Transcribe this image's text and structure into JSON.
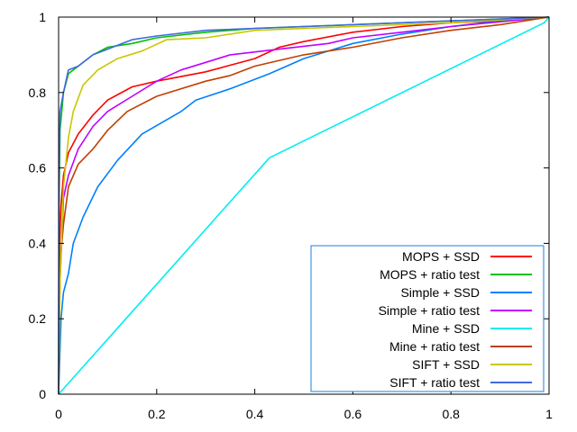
{
  "chart_data": {
    "type": "line",
    "title": "",
    "xlabel": "",
    "ylabel": "",
    "xlim": [
      0,
      1
    ],
    "ylim": [
      0,
      1
    ],
    "grid": false,
    "legend_position": "bottom-right",
    "x_ticks": [
      "0",
      "0.2",
      "0.4",
      "0.6",
      "0.8",
      "1"
    ],
    "y_ticks": [
      "0",
      "0.2",
      "0.4",
      "0.6",
      "0.8",
      "1"
    ],
    "series": [
      {
        "name": "MOPS + SSD",
        "color": "#ff0000",
        "points": [
          [
            0,
            0
          ],
          [
            0.002,
            0.4
          ],
          [
            0.005,
            0.5
          ],
          [
            0.01,
            0.58
          ],
          [
            0.02,
            0.64
          ],
          [
            0.04,
            0.69
          ],
          [
            0.07,
            0.74
          ],
          [
            0.1,
            0.78
          ],
          [
            0.15,
            0.815
          ],
          [
            0.2,
            0.83
          ],
          [
            0.3,
            0.855
          ],
          [
            0.4,
            0.89
          ],
          [
            0.45,
            0.92
          ],
          [
            0.5,
            0.935
          ],
          [
            0.6,
            0.96
          ],
          [
            0.7,
            0.975
          ],
          [
            0.8,
            0.985
          ],
          [
            0.9,
            0.99
          ],
          [
            1,
            1
          ]
        ]
      },
      {
        "name": "MOPS + ratio test",
        "color": "#00c000",
        "points": [
          [
            0,
            0
          ],
          [
            0.001,
            0.5
          ],
          [
            0.003,
            0.7
          ],
          [
            0.01,
            0.8
          ],
          [
            0.02,
            0.85
          ],
          [
            0.04,
            0.87
          ],
          [
            0.07,
            0.9
          ],
          [
            0.1,
            0.92
          ],
          [
            0.15,
            0.93
          ],
          [
            0.2,
            0.945
          ],
          [
            0.3,
            0.96
          ],
          [
            0.4,
            0.97
          ],
          [
            0.6,
            0.98
          ],
          [
            0.8,
            0.99
          ],
          [
            1,
            1
          ]
        ]
      },
      {
        "name": "Simple + SSD",
        "color": "#0080ff",
        "points": [
          [
            0,
            0
          ],
          [
            0.005,
            0.2
          ],
          [
            0.01,
            0.27
          ],
          [
            0.02,
            0.32
          ],
          [
            0.03,
            0.4
          ],
          [
            0.05,
            0.47
          ],
          [
            0.08,
            0.55
          ],
          [
            0.12,
            0.62
          ],
          [
            0.17,
            0.69
          ],
          [
            0.25,
            0.75
          ],
          [
            0.28,
            0.78
          ],
          [
            0.35,
            0.81
          ],
          [
            0.43,
            0.85
          ],
          [
            0.5,
            0.89
          ],
          [
            0.6,
            0.93
          ],
          [
            0.7,
            0.955
          ],
          [
            0.8,
            0.975
          ],
          [
            0.9,
            0.99
          ],
          [
            1,
            1
          ]
        ]
      },
      {
        "name": "Simple + ratio test",
        "color": "#c000ff",
        "points": [
          [
            0,
            0
          ],
          [
            0.003,
            0.3
          ],
          [
            0.01,
            0.52
          ],
          [
            0.02,
            0.58
          ],
          [
            0.04,
            0.65
          ],
          [
            0.07,
            0.71
          ],
          [
            0.1,
            0.75
          ],
          [
            0.15,
            0.79
          ],
          [
            0.2,
            0.83
          ],
          [
            0.25,
            0.86
          ],
          [
            0.3,
            0.88
          ],
          [
            0.35,
            0.9
          ],
          [
            0.45,
            0.915
          ],
          [
            0.55,
            0.93
          ],
          [
            0.6,
            0.945
          ],
          [
            0.7,
            0.96
          ],
          [
            0.8,
            0.975
          ],
          [
            1,
            1
          ]
        ]
      },
      {
        "name": "Mine + SSD",
        "color": "#00eeee",
        "points": [
          [
            0,
            0
          ],
          [
            0.43,
            0.627
          ],
          [
            0.99,
            0.985
          ],
          [
            1,
            1
          ]
        ]
      },
      {
        "name": "Mine + ratio test",
        "color": "#c04000",
        "points": [
          [
            0,
            0
          ],
          [
            0.003,
            0.35
          ],
          [
            0.01,
            0.45
          ],
          [
            0.02,
            0.55
          ],
          [
            0.04,
            0.61
          ],
          [
            0.07,
            0.65
          ],
          [
            0.1,
            0.7
          ],
          [
            0.14,
            0.75
          ],
          [
            0.2,
            0.79
          ],
          [
            0.3,
            0.83
          ],
          [
            0.35,
            0.845
          ],
          [
            0.4,
            0.87
          ],
          [
            0.5,
            0.9
          ],
          [
            0.6,
            0.92
          ],
          [
            0.7,
            0.945
          ],
          [
            0.8,
            0.965
          ],
          [
            0.9,
            0.98
          ],
          [
            1,
            1
          ]
        ]
      },
      {
        "name": "SIFT + SSD",
        "color": "#c8c800",
        "points": [
          [
            0,
            0
          ],
          [
            0.003,
            0.3
          ],
          [
            0.01,
            0.55
          ],
          [
            0.02,
            0.68
          ],
          [
            0.03,
            0.75
          ],
          [
            0.05,
            0.82
          ],
          [
            0.08,
            0.86
          ],
          [
            0.12,
            0.89
          ],
          [
            0.17,
            0.91
          ],
          [
            0.22,
            0.94
          ],
          [
            0.3,
            0.945
          ],
          [
            0.35,
            0.955
          ],
          [
            0.4,
            0.965
          ],
          [
            0.6,
            0.975
          ],
          [
            0.8,
            0.985
          ],
          [
            1,
            1
          ]
        ]
      },
      {
        "name": "SIFT + ratio test",
        "color": "#4169e1",
        "points": [
          [
            0,
            0
          ],
          [
            0.001,
            0.6
          ],
          [
            0.003,
            0.75
          ],
          [
            0.01,
            0.8
          ],
          [
            0.02,
            0.86
          ],
          [
            0.04,
            0.87
          ],
          [
            0.07,
            0.9
          ],
          [
            0.1,
            0.915
          ],
          [
            0.15,
            0.94
          ],
          [
            0.2,
            0.95
          ],
          [
            0.3,
            0.965
          ],
          [
            0.5,
            0.975
          ],
          [
            0.7,
            0.985
          ],
          [
            1,
            1
          ]
        ]
      }
    ]
  }
}
